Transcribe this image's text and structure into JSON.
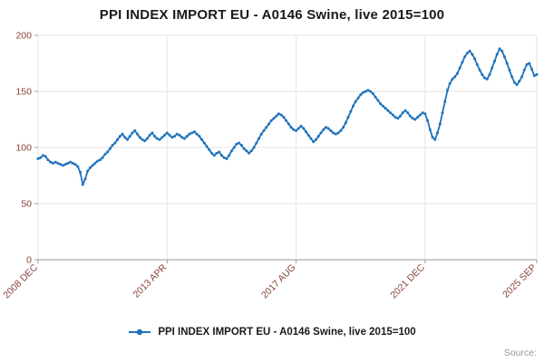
{
  "title": "PPI INDEX IMPORT EU - A0146 Swine, live 2015=100",
  "legend": {
    "label": "PPI INDEX IMPORT EU - A0146 Swine, live 2015=100"
  },
  "source": {
    "label": "Source:"
  },
  "colors": {
    "line": "#2073bc",
    "grid": "#e6e6e6",
    "axis": "#999999",
    "tick_label": "#8a423c",
    "title": "#1a1a1a",
    "source": "#999999"
  },
  "chart_data": {
    "type": "line",
    "title": "PPI INDEX IMPORT EU - A0146 Swine, live 2015=100",
    "xlabel": "",
    "ylabel": "",
    "frequency": "monthly",
    "x_start": "2008 DEC",
    "x_end": "2025 SEP",
    "ylim": [
      0,
      200
    ],
    "y_ticks": [
      0,
      50,
      100,
      150,
      200
    ],
    "x_ticks": [
      {
        "label": "2008 DEC",
        "index": 0
      },
      {
        "label": "2013 APR",
        "index": 52
      },
      {
        "label": "2017 AUG",
        "index": 104
      },
      {
        "label": "2021 DEC",
        "index": 156
      },
      {
        "label": "2025 SEP",
        "index": 201
      }
    ],
    "grid": true,
    "legend_position": "bottom",
    "series": [
      {
        "name": "PPI INDEX IMPORT EU - A0146 Swine, live 2015=100",
        "color": "#2073bc",
        "values": [
          90,
          91,
          93,
          92,
          89,
          87,
          86,
          87,
          86,
          85,
          84,
          85,
          86,
          87,
          86,
          85,
          83,
          78,
          67,
          72,
          79,
          82,
          84,
          86,
          88,
          89,
          91,
          94,
          96,
          99,
          102,
          104,
          107,
          110,
          112,
          109,
          107,
          110,
          113,
          115,
          112,
          109,
          107,
          106,
          108,
          111,
          113,
          110,
          108,
          107,
          109,
          111,
          113,
          111,
          109,
          110,
          112,
          111,
          109,
          108,
          110,
          112,
          113,
          114,
          112,
          110,
          107,
          104,
          101,
          98,
          95,
          93,
          95,
          96,
          93,
          91,
          90,
          93,
          97,
          100,
          103,
          104,
          102,
          99,
          97,
          95,
          97,
          100,
          104,
          108,
          112,
          115,
          118,
          121,
          124,
          126,
          128,
          130,
          129,
          127,
          124,
          121,
          118,
          116,
          115,
          117,
          119,
          117,
          114,
          111,
          108,
          105,
          107,
          110,
          113,
          116,
          118,
          117,
          115,
          113,
          112,
          113,
          115,
          118,
          122,
          127,
          132,
          137,
          141,
          144,
          147,
          149,
          150,
          151,
          150,
          148,
          145,
          142,
          139,
          137,
          135,
          133,
          131,
          129,
          127,
          126,
          128,
          131,
          133,
          131,
          128,
          126,
          125,
          127,
          129,
          131,
          130,
          124,
          116,
          109,
          107,
          113,
          121,
          131,
          141,
          151,
          157,
          161,
          163,
          166,
          171,
          176,
          181,
          184,
          186,
          183,
          179,
          174,
          169,
          165,
          162,
          161,
          165,
          171,
          177,
          183,
          188,
          186,
          181,
          175,
          169,
          163,
          158,
          156,
          159,
          163,
          169,
          174,
          175,
          170,
          164,
          165
        ]
      }
    ]
  }
}
